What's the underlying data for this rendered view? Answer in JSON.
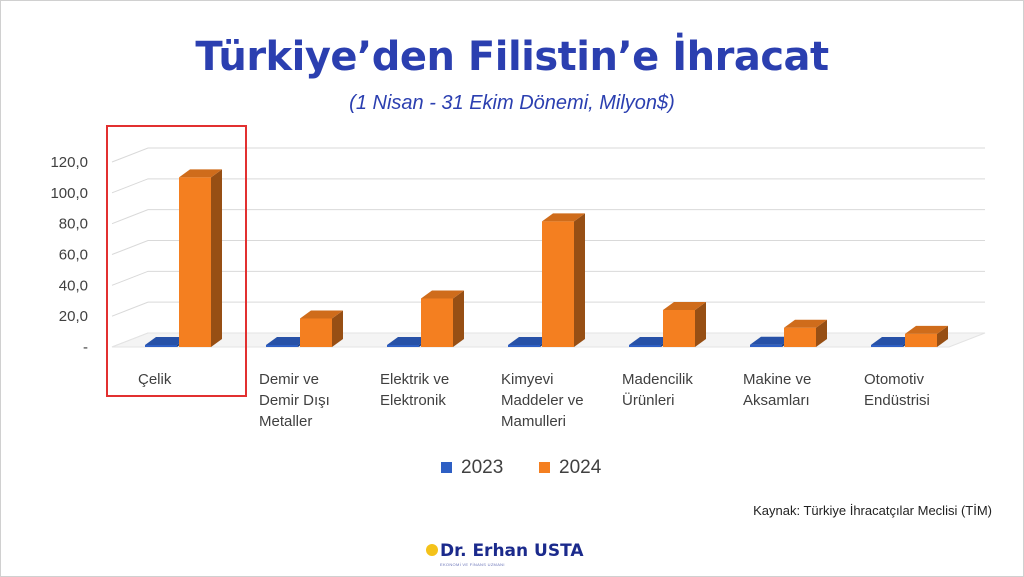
{
  "chart_data": {
    "type": "bar",
    "title": "Türkiye’den Filistin’e İhracat",
    "subtitle": "(1 Nisan - 31 Ekim Dönemi, Milyon$)",
    "categories": [
      [
        "Çelik"
      ],
      [
        "Demir ve",
        "Demir Dışı",
        "Metaller"
      ],
      [
        "Elektrik ve",
        "Elektronik"
      ],
      [
        "Kimyevi",
        "Maddeler ve",
        "Mamulleri"
      ],
      [
        "Madencilik",
        "Ürünleri"
      ],
      [
        "Makine ve",
        "Aksamları"
      ],
      [
        "Otomotiv",
        "Endüstrisi"
      ]
    ],
    "series": [
      {
        "name": "2023",
        "color": "#2e5fc4",
        "values": [
          0.3,
          0.2,
          0.3,
          0.5,
          0.2,
          1.5,
          0.3
        ]
      },
      {
        "name": "2024",
        "color": "#f47f20",
        "values": [
          110.0,
          18.5,
          31.5,
          81.5,
          24.0,
          12.5,
          8.5
        ]
      }
    ],
    "ylim": [
      0,
      120
    ],
    "yticks": [
      "-",
      "20,0",
      "40,0",
      "60,0",
      "80,0",
      "100,0",
      "120,0"
    ],
    "grid": true,
    "legend": "bottom",
    "highlight_category": 0,
    "highlight_color": "#e23030"
  },
  "source": "Kaynak: Türkiye İhracatçılar Meclisi (TİM)",
  "logo": {
    "name": "Dr. Erhan USTA",
    "tagline": "EKONOMİ VE FİNANS UZMANI"
  }
}
